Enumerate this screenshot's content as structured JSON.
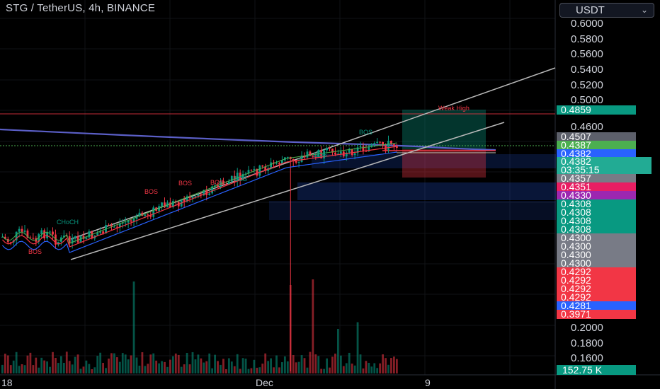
{
  "header": {
    "title": "STG / TetherUS, 4h, BINANCE",
    "currency": "USDT"
  },
  "price_scale": [
    "0.6000",
    "0.5800",
    "0.5600",
    "0.5400",
    "0.5200",
    "0.5000",
    "0.4600",
    "0.2000",
    "0.1800",
    "0.1600"
  ],
  "price_tags": [
    {
      "label": "0.4859",
      "color": "#089981"
    },
    {
      "label": "0.4507",
      "color": "#5d606b"
    },
    {
      "label": "0.4387",
      "color": "#4caf50"
    },
    {
      "label": "0.4382",
      "color": "#2962ff"
    },
    {
      "label": "0.4382",
      "color": "#22ab94"
    },
    {
      "label": "0.4357",
      "color": "#787b86"
    },
    {
      "label": "0.4351",
      "color": "#e91e63"
    },
    {
      "label": "0.4330",
      "color": "#9c27b0"
    },
    {
      "label": "0.4308",
      "color": "#089981"
    },
    {
      "label": "0.4308",
      "color": "#089981"
    },
    {
      "label": "0.4308",
      "color": "#089981"
    },
    {
      "label": "0.4308",
      "color": "#089981"
    },
    {
      "label": "0.4300",
      "color": "#787b86"
    },
    {
      "label": "0.4300",
      "color": "#787b86"
    },
    {
      "label": "0.4300",
      "color": "#787b86"
    },
    {
      "label": "0.4300",
      "color": "#787b86"
    },
    {
      "label": "0.4292",
      "color": "#f23645"
    },
    {
      "label": "0.4292",
      "color": "#f23645"
    },
    {
      "label": "0.4292",
      "color": "#f23645"
    },
    {
      "label": "0.4292",
      "color": "#f23645"
    },
    {
      "label": "0.4281",
      "color": "#2962ff"
    },
    {
      "label": "0.3971",
      "color": "#f23645"
    }
  ],
  "countdown": "03:35:15",
  "volume_tag": "152.75 K",
  "time_axis": [
    "18",
    "Dec",
    "9"
  ],
  "annotations": {
    "weak_high": "Weak High",
    "bos": "BOS",
    "choch": "CHoCH"
  },
  "colors": {
    "up": "#089981",
    "down": "#f23645",
    "background": "#000000"
  }
}
